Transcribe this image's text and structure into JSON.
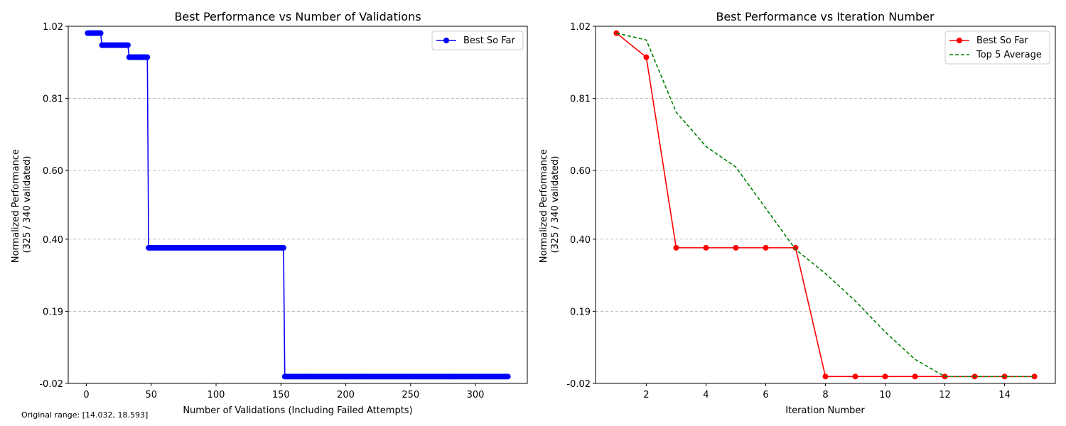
{
  "footnote": "Original range: [14.032, 18.593]",
  "chart_data": [
    {
      "type": "line",
      "title": "Best Performance vs Number of Validations",
      "xlabel": "Number of Validations (Including Failed Attempts)",
      "ylabel_line1": "Normalized Performance",
      "ylabel_line2": "(325 / 340 validated)",
      "xlim": [
        -14,
        340
      ],
      "ylim": [
        -0.02,
        1.02
      ],
      "xticks": [
        0,
        50,
        100,
        150,
        200,
        250,
        300
      ],
      "xtick_labels": [
        "0",
        "50",
        "100",
        "150",
        "200",
        "250",
        "300"
      ],
      "yticks": [
        -0.02,
        0.19,
        0.4,
        0.6,
        0.81,
        1.02
      ],
      "ytick_labels": [
        "-0.02",
        "0.19",
        "0.40",
        "0.60",
        "0.81",
        "1.02"
      ],
      "grid": "y-dashed",
      "legend": {
        "position": "top-right",
        "entries": [
          "Best So Far"
        ]
      },
      "series": [
        {
          "name": "Best So Far",
          "color": "#0000ff",
          "style": "solid-markers",
          "steps": [
            {
              "from": 1,
              "to": 11,
              "y": 1.0
            },
            {
              "from": 12,
              "to": 32,
              "y": 0.965
            },
            {
              "from": 33,
              "to": 47,
              "y": 0.93
            },
            {
              "from": 48,
              "to": 152,
              "y": 0.375
            },
            {
              "from": 153,
              "to": 325,
              "y": 0.0
            }
          ]
        }
      ]
    },
    {
      "type": "line",
      "title": "Best Performance vs Iteration Number",
      "xlabel": "Iteration Number",
      "ylabel_line1": "Normalized Performance",
      "ylabel_line2": "(325 / 340 validated)",
      "xlim": [
        0.3,
        15.7
      ],
      "ylim": [
        -0.02,
        1.02
      ],
      "xticks": [
        2,
        4,
        6,
        8,
        10,
        12,
        14
      ],
      "xtick_labels": [
        "2",
        "4",
        "6",
        "8",
        "10",
        "12",
        "14"
      ],
      "yticks": [
        -0.02,
        0.19,
        0.4,
        0.6,
        0.81,
        1.02
      ],
      "ytick_labels": [
        "-0.02",
        "0.19",
        "0.40",
        "0.60",
        "0.81",
        "1.02"
      ],
      "grid": "y-dashed",
      "legend": {
        "position": "top-right",
        "entries": [
          "Best So Far",
          "Top 5 Average"
        ]
      },
      "series": [
        {
          "name": "Best So Far",
          "color": "#ff0000",
          "style": "solid-markers",
          "x": [
            1,
            2,
            3,
            4,
            5,
            6,
            7,
            8,
            9,
            10,
            11,
            12,
            13,
            14,
            15
          ],
          "values": [
            1.0,
            0.93,
            0.375,
            0.375,
            0.375,
            0.375,
            0.375,
            0.0,
            0.0,
            0.0,
            0.0,
            0.0,
            0.0,
            0.0,
            0.0
          ]
        },
        {
          "name": "Top 5 Average",
          "color": "#008000",
          "style": "dashed",
          "x": [
            1,
            2,
            3,
            4,
            5,
            6,
            7,
            8,
            9,
            10,
            11,
            12,
            13,
            14,
            15
          ],
          "values": [
            1.0,
            0.98,
            0.77,
            0.67,
            0.61,
            0.49,
            0.37,
            0.3,
            0.22,
            0.13,
            0.05,
            0.0,
            0.0,
            0.0,
            0.0
          ]
        }
      ]
    }
  ]
}
